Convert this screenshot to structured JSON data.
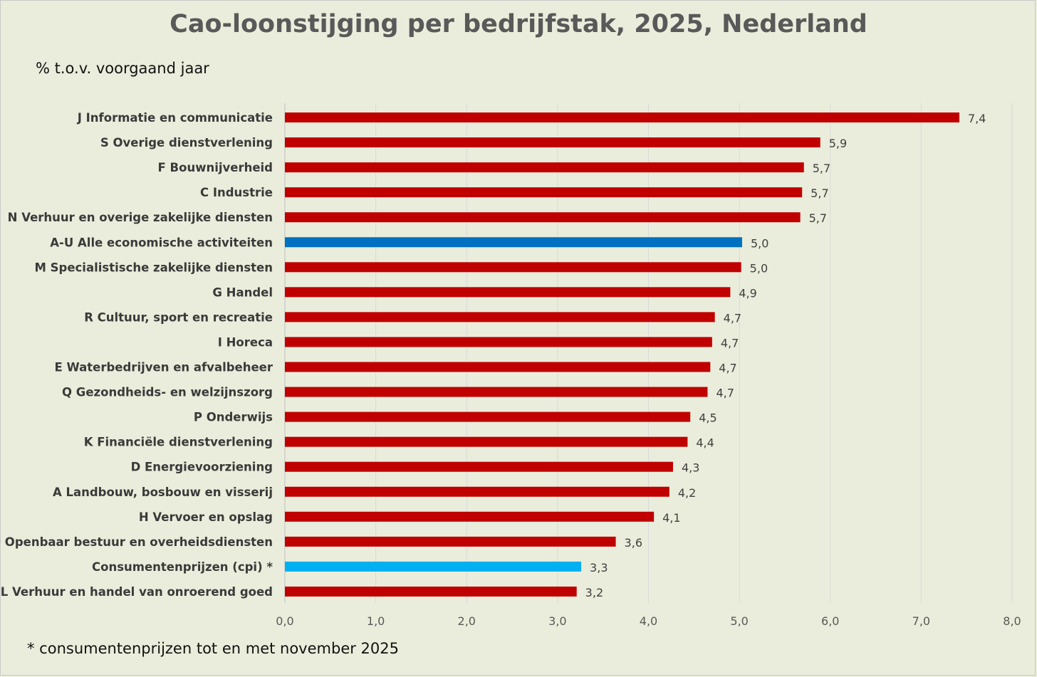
{
  "chart_data": {
    "type": "bar",
    "orientation": "horizontal",
    "title": "Cao-loonstijging per bedrijfstak, 2025, Nederland",
    "subtitle": "% t.o.v. voorgaand jaar",
    "footnote": "* consumentenprijzen tot en met november 2025",
    "xlim": [
      0,
      8
    ],
    "xticks": [
      0,
      1,
      2,
      3,
      4,
      5,
      6,
      7,
      8
    ],
    "xtick_labels": [
      "0,0",
      "1,0",
      "2,0",
      "3,0",
      "4,0",
      "5,0",
      "6,0",
      "7,0",
      "8,0"
    ],
    "grid": "vertical",
    "legend": "none",
    "categories": [
      "J Informatie en communicatie",
      "S Overige dienstverlening",
      "F Bouwnijverheid",
      "C Industrie",
      "N Verhuur en overige zakelijke diensten",
      "A-U Alle economische activiteiten",
      "M Specialistische zakelijke diensten",
      "G Handel",
      "R Cultuur, sport en recreatie",
      "I Horeca",
      "E Waterbedrijven en afvalbeheer",
      "Q Gezondheids- en welzijnszorg",
      "P Onderwijs",
      "K Financiële dienstverlening",
      "D Energievoorziening",
      "A Landbouw, bosbouw en visserij",
      "H Vervoer en opslag",
      "O Openbaar bestuur en overheidsdiensten",
      "Consumentenprijzen (cpi) *",
      "L Verhuur en handel van onroerend goed"
    ],
    "values": [
      7.42,
      5.89,
      5.71,
      5.69,
      5.67,
      5.03,
      5.02,
      4.9,
      4.73,
      4.7,
      4.68,
      4.65,
      4.46,
      4.43,
      4.27,
      4.23,
      4.06,
      3.64,
      3.26,
      3.21
    ],
    "value_labels": [
      "7,4",
      "5,9",
      "5,7",
      "5,7",
      "5,7",
      "5,0",
      "5,0",
      "4,9",
      "4,7",
      "4,7",
      "4,7",
      "4,7",
      "4,5",
      "4,4",
      "4,3",
      "4,2",
      "4,1",
      "3,6",
      "3,3",
      "3,2"
    ],
    "bar_colors": [
      "#c00000",
      "#c00000",
      "#c00000",
      "#c00000",
      "#c00000",
      "#0070c0",
      "#c00000",
      "#c00000",
      "#c00000",
      "#c00000",
      "#c00000",
      "#c00000",
      "#c00000",
      "#c00000",
      "#c00000",
      "#c00000",
      "#c00000",
      "#c00000",
      "#00b0f0",
      "#c00000"
    ]
  },
  "colors": {
    "background": "#eaeddb",
    "gridline": "#d9d9d9",
    "axis": "#bfbfbf"
  }
}
